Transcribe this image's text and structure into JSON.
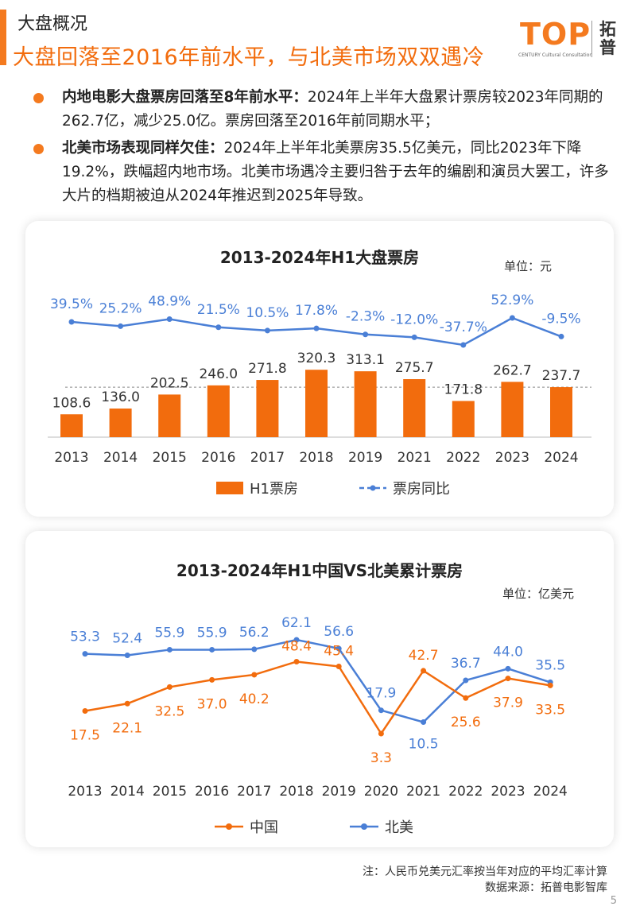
{
  "header": {
    "section_label": "大盘概况",
    "headline": "大盘回落至2016年前水平，与北美市场双双遇冷"
  },
  "logo": {
    "wordmark": "TOP",
    "tagline": "CENTURY Cultural Consultation",
    "cn_name": "拓普"
  },
  "bullets": [
    {
      "lead": "内地电影大盘票房回落至8年前水平：",
      "text": "2024年上半年大盘累计票房较2023年同期的262.7亿，减少25.0亿。票房回落至2016年前同期水平；"
    },
    {
      "lead": "北美市场表现同样欠佳：",
      "text": "2024年上半年北美票房35.5亿美元，同比2023年下降19.2%，跌幅超内地市场。北美市场遇冷主要归咎于去年的编剧和演员大罢工，许多大片的档期被迫从2024年推迟到2025年导致。"
    }
  ],
  "chart_data": [
    {
      "type": "bar",
      "title": "2013-2024年H1大盘票房",
      "unit": "单位：元",
      "categories": [
        "2013",
        "2014",
        "2015",
        "2016",
        "2017",
        "2018",
        "2019",
        "2021",
        "2022",
        "2023",
        "2024"
      ],
      "series": [
        {
          "name": "H1票房",
          "values": [
            108.6,
            136.0,
            202.5,
            246.0,
            271.8,
            320.3,
            313.1,
            275.7,
            171.8,
            262.7,
            237.7
          ],
          "color": "#f26c0d",
          "labels": [
            "108.6",
            "136.0",
            "202.5",
            "246.0",
            "271.8",
            "320.3",
            "313.1",
            "275.7",
            "171.8",
            "262.7",
            "237.7"
          ]
        },
        {
          "name": "票房同比",
          "type": "line",
          "values": [
            39.5,
            25.2,
            48.9,
            21.5,
            10.5,
            17.8,
            -2.3,
            -12.0,
            -37.7,
            52.9,
            -9.5
          ],
          "color": "#4a7fd6",
          "labels": [
            "39.5%",
            "25.2%",
            "48.9%",
            "21.5%",
            "10.5%",
            "17.8%",
            "-2.3%",
            "-12.0%",
            "-37.7%",
            "52.9%",
            "-9.5%"
          ]
        }
      ],
      "reference_line": 237.7,
      "legend": "bottom"
    },
    {
      "type": "line",
      "title": "2013-2024年H1中国VS北美累计票房",
      "unit": "单位：亿美元",
      "categories": [
        "2013",
        "2014",
        "2015",
        "2016",
        "2017",
        "2018",
        "2019",
        "2020",
        "2021",
        "2022",
        "2023",
        "2024"
      ],
      "series": [
        {
          "name": "中国",
          "values": [
            17.5,
            22.1,
            32.5,
            37.0,
            40.2,
            48.4,
            45.4,
            3.3,
            42.7,
            25.6,
            37.9,
            33.5
          ],
          "color": "#f26c0d",
          "labels": [
            "17.5",
            "22.1",
            "32.5",
            "37.0",
            "40.2",
            "48.4",
            "45.4",
            "3.3",
            "42.7",
            "25.6",
            "37.9",
            "33.5"
          ]
        },
        {
          "name": "北美",
          "values": [
            53.3,
            52.4,
            55.9,
            55.9,
            56.2,
            62.1,
            56.6,
            17.9,
            10.5,
            36.7,
            44.0,
            35.5
          ],
          "color": "#4a7fd6",
          "labels": [
            "53.3",
            "52.4",
            "55.9",
            "55.9",
            "56.2",
            "62.1",
            "56.6",
            "17.9",
            "10.5",
            "36.7",
            "44.0",
            "35.5"
          ]
        }
      ],
      "legend": "bottom"
    }
  ],
  "footnotes": {
    "note": "注：人民币兑美元汇率按当年对应的平均汇率计算",
    "source": "数据来源：拓普电影智库"
  },
  "page_number": "5"
}
